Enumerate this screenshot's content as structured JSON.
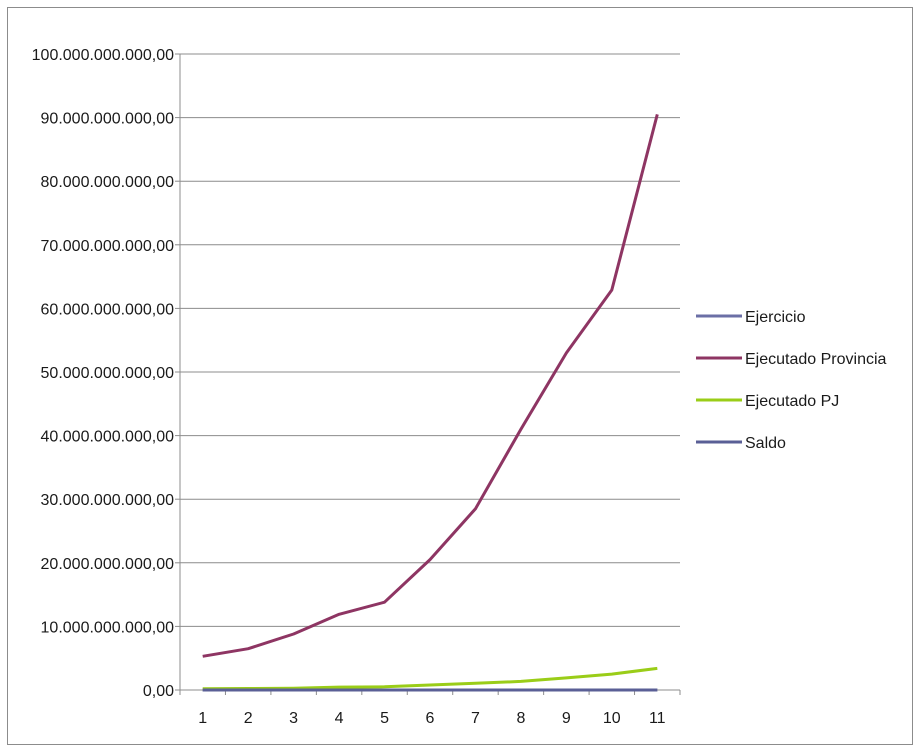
{
  "chart_data": {
    "type": "line",
    "title": "",
    "xlabel": "",
    "ylabel": "",
    "x": [
      1,
      2,
      3,
      4,
      5,
      6,
      7,
      8,
      9,
      10,
      11
    ],
    "xtick_labels": [
      "1",
      "2",
      "3",
      "4",
      "5",
      "6",
      "7",
      "8",
      "9",
      "10",
      "11"
    ],
    "ylim": [
      0,
      100000000000
    ],
    "ytick_values": [
      0,
      10000000000,
      20000000000,
      30000000000,
      40000000000,
      50000000000,
      60000000000,
      70000000000,
      80000000000,
      90000000000,
      100000000000
    ],
    "ytick_labels": [
      "0,00",
      "10.000.000.000,00",
      "20.000.000.000,00",
      "30.000.000.000,00",
      "40.000.000.000,00",
      "50.000.000.000,00",
      "60.000.000.000,00",
      "70.000.000.000,00",
      "80.000.000.000,00",
      "90.000.000.000,00",
      "100.000.000.000,00"
    ],
    "grid": "horizontal",
    "legend_position": "right",
    "series": [
      {
        "name": "Ejercicio",
        "color": "#6b6fa6",
        "values": [
          2000,
          2001,
          2002,
          2003,
          2004,
          2005,
          2006,
          2007,
          2008,
          2009,
          2010
        ]
      },
      {
        "name": "Ejecutado Provincia",
        "color": "#8e3563",
        "values": [
          5300000000,
          6500000000,
          8800000000,
          11900000000,
          13800000000,
          20500000000,
          28500000000,
          41000000000,
          53000000000,
          62900000000,
          90500000000
        ]
      },
      {
        "name": "Ejecutado PJ",
        "color": "#9acd18",
        "values": [
          200000000,
          230000000,
          280000000,
          450000000,
          500000000,
          780000000,
          1060000000,
          1350000000,
          1900000000,
          2500000000,
          3400000000
        ]
      },
      {
        "name": "Saldo",
        "color": "#5a5f96",
        "values": [
          0,
          0,
          0,
          0,
          0,
          0,
          0,
          0,
          0,
          0,
          0
        ]
      }
    ]
  }
}
